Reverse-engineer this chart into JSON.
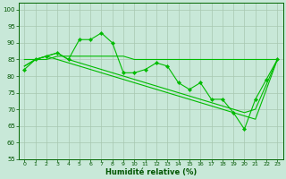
{
  "x": [
    0,
    1,
    2,
    3,
    4,
    5,
    6,
    7,
    8,
    9,
    10,
    11,
    12,
    13,
    14,
    15,
    16,
    17,
    18,
    19,
    20,
    21,
    22,
    23
  ],
  "line_zigzag": [
    82,
    85,
    86,
    87,
    85,
    91,
    91,
    93,
    90,
    81,
    81,
    82,
    84,
    83,
    78,
    76,
    78,
    73,
    73,
    69,
    64,
    73,
    79,
    85
  ],
  "line_flat": [
    85,
    85,
    85,
    86,
    86,
    86,
    86,
    86,
    86,
    86,
    85,
    85,
    85,
    85,
    85,
    85,
    85,
    85,
    85,
    85,
    85,
    85,
    85,
    85
  ],
  "line_diag1": [
    83,
    85,
    86,
    87,
    85,
    84,
    83,
    82,
    81,
    80,
    79,
    78,
    77,
    76,
    75,
    74,
    73,
    72,
    71,
    70,
    69,
    70,
    null,
    85
  ],
  "line_diag2": [
    83,
    85,
    86,
    85,
    84,
    83,
    82,
    81,
    80,
    79,
    78,
    77,
    76,
    75,
    74,
    73,
    72,
    71,
    70,
    69,
    68,
    67,
    null,
    85
  ],
  "bg_color": "#c8e8d8",
  "grid_color": "#a8c8b0",
  "line_color": "#00bb00",
  "marker": "D",
  "xlabel": "Humidité relative (%)",
  "ylim": [
    55,
    102
  ],
  "xlim": [
    -0.5,
    23.5
  ],
  "yticks": [
    55,
    60,
    65,
    70,
    75,
    80,
    85,
    90,
    95,
    100
  ],
  "xticks": [
    0,
    1,
    2,
    3,
    4,
    5,
    6,
    7,
    8,
    9,
    10,
    11,
    12,
    13,
    14,
    15,
    16,
    17,
    18,
    19,
    20,
    21,
    22,
    23
  ]
}
